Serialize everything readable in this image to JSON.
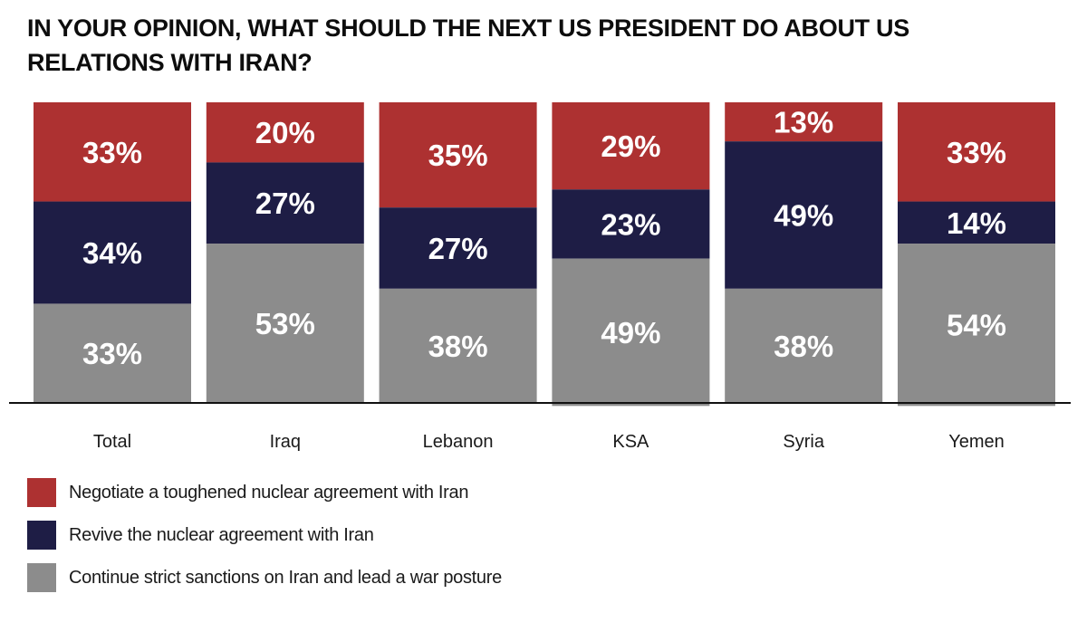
{
  "chart_data": {
    "type": "bar",
    "stacked": true,
    "title": "IN YOUR OPINION, WHAT SHOULD THE NEXT US PRESIDENT DO ABOUT US RELATIONS WITH IRAN?",
    "categories": [
      "Total",
      "Iraq",
      "Lebanon",
      "KSA",
      "Syria",
      "Yemen"
    ],
    "series": [
      {
        "name": "Negotiate a toughened nuclear agreement with Iran",
        "color": "#ad3131",
        "values": [
          33,
          20,
          35,
          29,
          13,
          33
        ]
      },
      {
        "name": "Revive the nuclear agreement with Iran",
        "color": "#1e1d45",
        "values": [
          34,
          27,
          27,
          23,
          49,
          14
        ]
      },
      {
        "name": "Continue strict sanctions on Iran and lead a war posture",
        "color": "#8c8c8c",
        "values": [
          33,
          53,
          38,
          49,
          38,
          54
        ]
      }
    ],
    "value_suffix": "%",
    "xlabel": "",
    "ylabel": "",
    "ylim": [
      0,
      100
    ],
    "legend_position": "bottom-left"
  }
}
